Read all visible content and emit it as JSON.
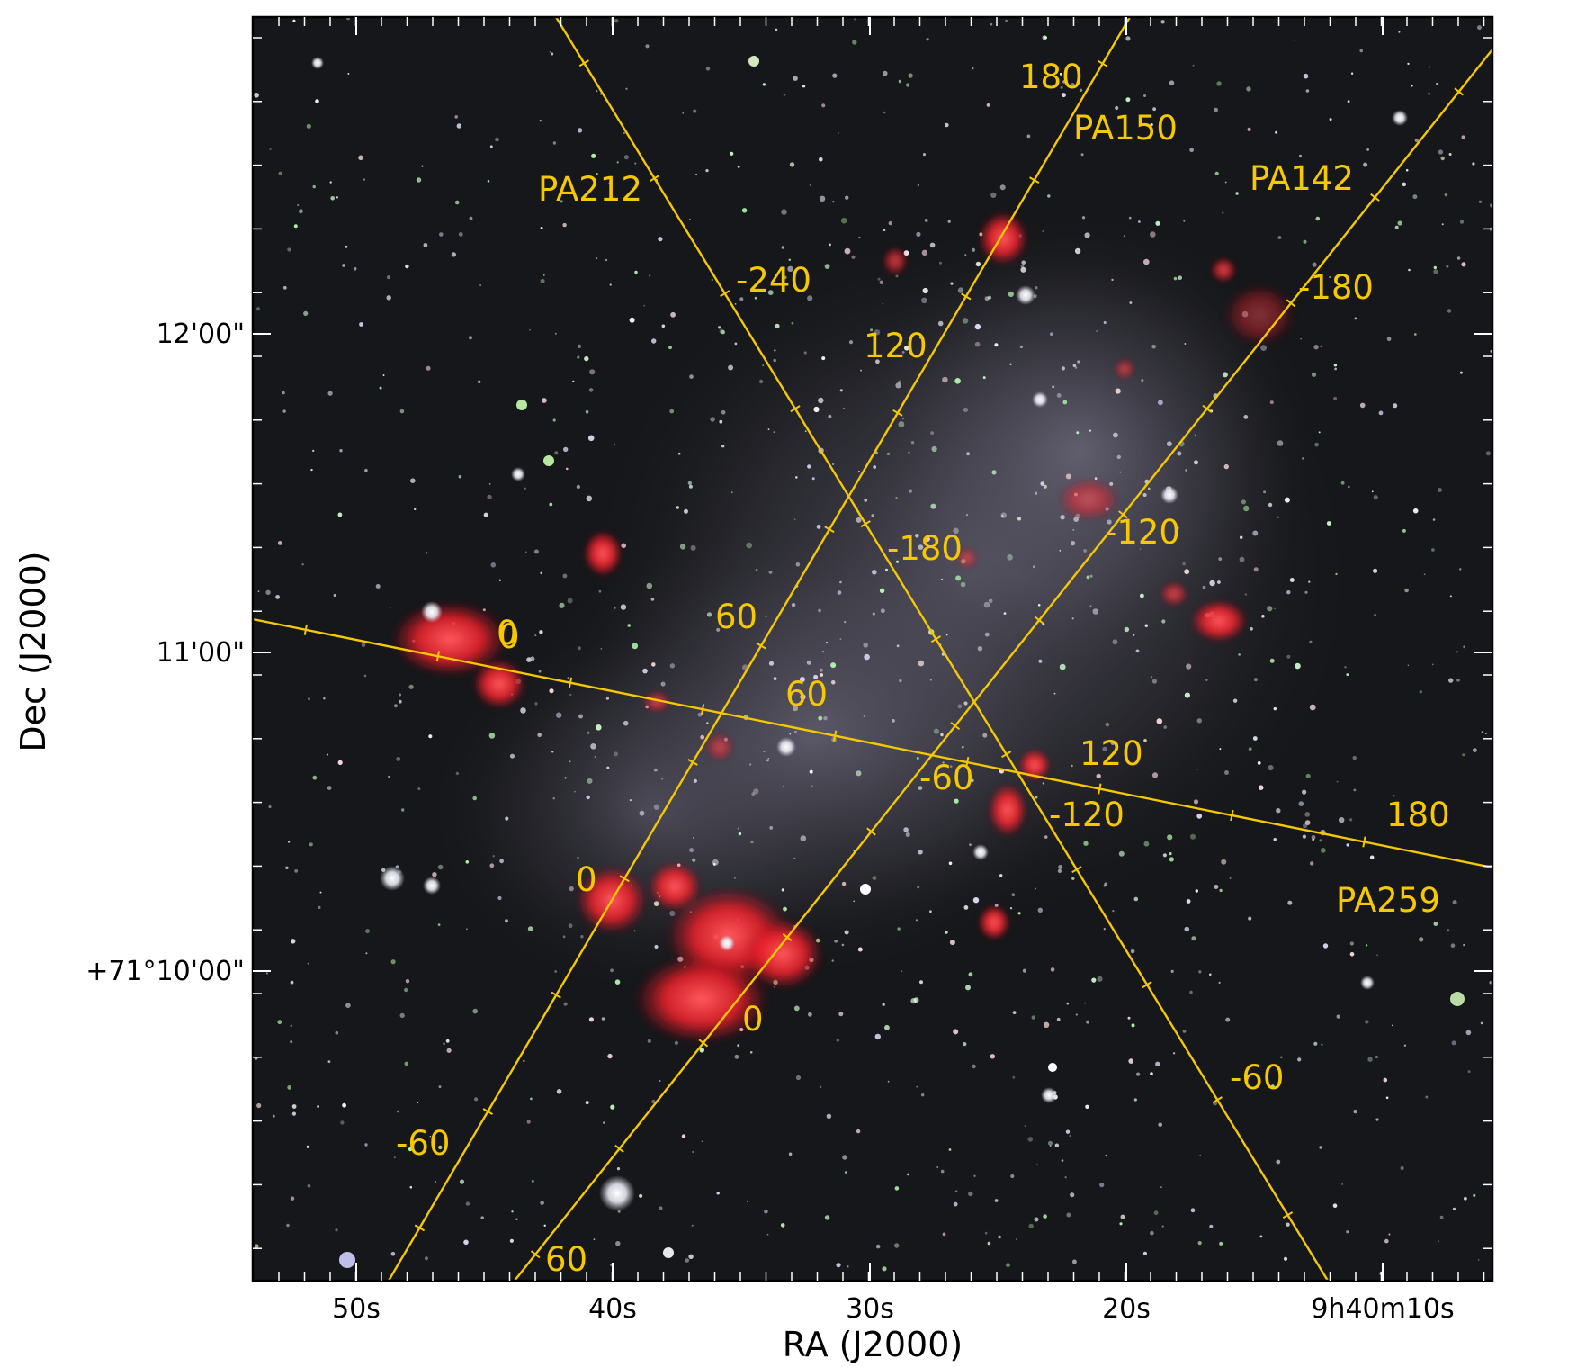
{
  "figure": {
    "x_axis": {
      "label": "RA (J2000)",
      "ticks": [
        "50s",
        "40s",
        "30s",
        "20s",
        "9h40m10s"
      ]
    },
    "y_axis": {
      "label": "Dec (J2000)",
      "ticks": [
        "12'00\"",
        "11'00\"",
        "+71°10'00\""
      ]
    },
    "colors": {
      "slit_line": "#f5c800",
      "label": "#f5c800",
      "sky_background": "#16171a",
      "emission_region": "#ff2a30",
      "stellar_haze": "#8a849c"
    },
    "slits": [
      {
        "name": "PA212",
        "labels": [
          "-240",
          "-180",
          "0",
          "-120",
          "-60"
        ]
      },
      {
        "name": "PA150",
        "labels": [
          "180",
          "120",
          "60",
          "0",
          "-60"
        ]
      },
      {
        "name": "PA142",
        "labels": [
          "-180",
          "-120",
          "-60",
          "0",
          "60"
        ]
      },
      {
        "name": "PA259",
        "labels": [
          "0",
          "60",
          "120",
          "180"
        ]
      }
    ]
  }
}
